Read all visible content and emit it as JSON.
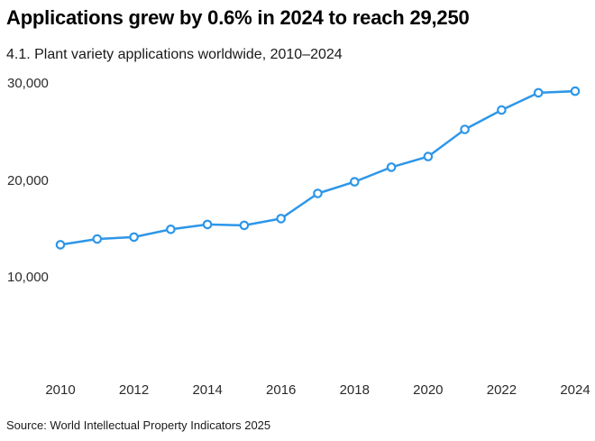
{
  "page": {
    "title": "Applications grew by 0.6% in 2024 to reach 29,250",
    "subtitle": "4.1. Plant variety applications worldwide, 2010–2024",
    "source": "Source: World Intellectual Property Indicators 2025"
  },
  "chart_data": {
    "type": "line",
    "title": "Applications grew by 0.6% in 2024 to reach 29,250",
    "subtitle": "4.1. Plant variety applications worldwide, 2010–2024",
    "series": [
      {
        "name": "Plant variety applications worldwide",
        "x": [
          2010,
          2011,
          2012,
          2013,
          2014,
          2015,
          2016,
          2017,
          2018,
          2019,
          2020,
          2021,
          2022,
          2023,
          2024
        ],
        "values": [
          13400,
          14000,
          14200,
          15000,
          15500,
          15400,
          16100,
          18700,
          19900,
          21400,
          22500,
          25300,
          27300,
          29080,
          29250
        ]
      }
    ],
    "xlabel": "",
    "ylabel": "",
    "xticks": [
      2010,
      2012,
      2014,
      2016,
      2018,
      2020,
      2022,
      2024
    ],
    "yticks": [
      {
        "value": 10000,
        "label": "10,000"
      },
      {
        "value": 20000,
        "label": "20,000"
      },
      {
        "value": 30000,
        "label": "30,000"
      }
    ],
    "ylim": [
      10000,
      30000
    ],
    "grid": false,
    "legend": "none",
    "line_color": "#2D96E8",
    "marker": "circle-open",
    "marker_fill": "#ffffff",
    "annotation_2024_value": "29,250",
    "growth_2024": "0.6%"
  }
}
